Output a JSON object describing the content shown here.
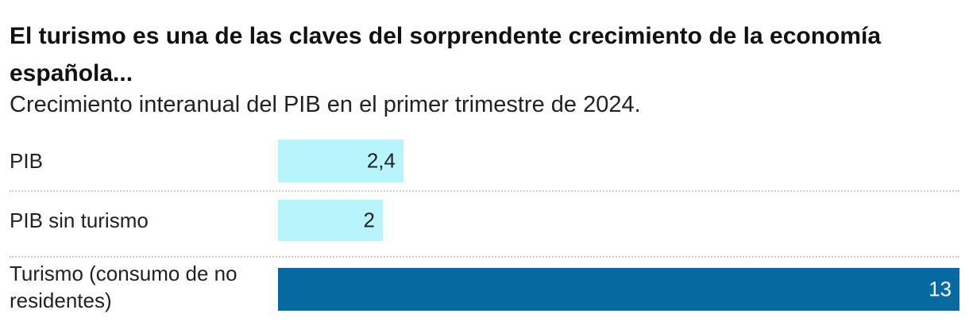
{
  "title": "El turismo es una de las claves del sorprendente crecimiento de la economía española...",
  "subtitle": "Crecimiento interanual del PIB en el primer trimestre de 2024.",
  "colors": {
    "light_bar": "#b8f4fc",
    "highlight_bar": "#06699f"
  },
  "chart_data": {
    "type": "bar",
    "orientation": "horizontal",
    "categories": [
      "PIB",
      "PIB sin turismo",
      "Turismo (consumo de no residentes)"
    ],
    "values": [
      2.4,
      2,
      13
    ],
    "value_labels": [
      "2,4",
      "2",
      "13"
    ],
    "xlim": [
      0,
      13
    ],
    "highlight_index": 2,
    "grid": false
  }
}
